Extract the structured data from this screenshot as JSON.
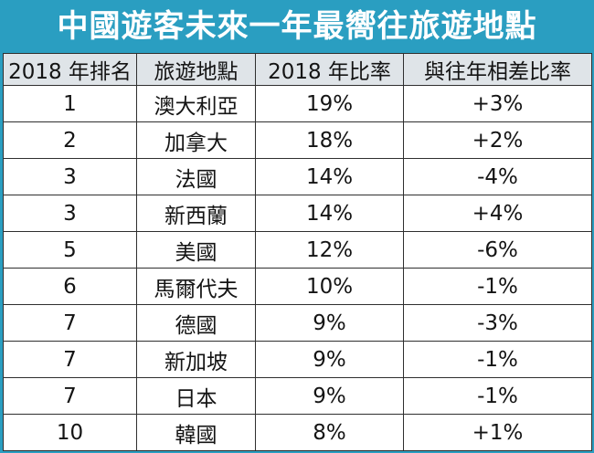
{
  "colors": {
    "banner": "#2a9ec1",
    "header_row": "#dfe4e8",
    "title_text": "#ffffff",
    "grid_line": "#2f2f2f"
  },
  "chart_data": {
    "type": "table",
    "title": "中國遊客未來一年最嚮往旅遊地點",
    "columns": [
      "2018 年排名",
      "旅遊地點",
      "2018 年比率",
      "與往年相差比率"
    ],
    "rows": [
      [
        "1",
        "澳大利亞",
        "19%",
        "+3%"
      ],
      [
        "2",
        "加拿大",
        "18%",
        "+2%"
      ],
      [
        "3",
        "法國",
        "14%",
        "-4%"
      ],
      [
        "3",
        "新西蘭",
        "14%",
        "+4%"
      ],
      [
        "5",
        "美國",
        "12%",
        "-6%"
      ],
      [
        "6",
        "馬爾代夫",
        "10%",
        "-1%"
      ],
      [
        "7",
        "德國",
        "9%",
        "-3%"
      ],
      [
        "7",
        "新加坡",
        "9%",
        "-1%"
      ],
      [
        "7",
        "日本",
        "9%",
        "-1%"
      ],
      [
        "10",
        "韓國",
        "8%",
        "+1%"
      ]
    ]
  }
}
